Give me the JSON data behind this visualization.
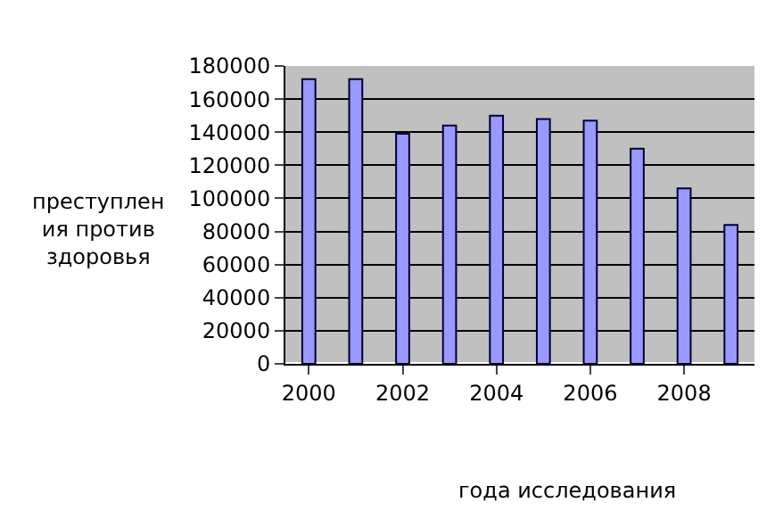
{
  "chart_data": {
    "type": "bar",
    "xlabel": "года исследования",
    "ylabel": "преступления против здоровья",
    "categories": [
      "2000",
      null,
      "2002",
      null,
      "2004",
      null,
      "2006",
      null,
      "2008",
      null
    ],
    "values": [
      172000,
      172000,
      139000,
      144000,
      150000,
      148000,
      147000,
      130000,
      106000,
      84000
    ],
    "color": "#9999ff",
    "ylim": [
      0,
      180000
    ],
    "yticks": [
      0,
      20000,
      40000,
      60000,
      80000,
      100000,
      120000,
      140000,
      160000,
      180000
    ],
    "grid": "y"
  }
}
